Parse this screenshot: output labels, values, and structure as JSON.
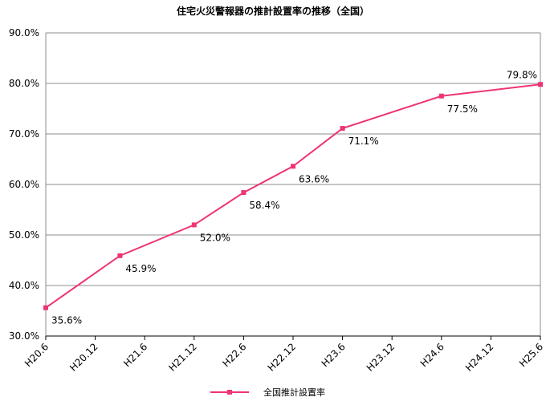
{
  "chart_data": {
    "type": "line",
    "title": "住宅火災警報器の推計設置率の推移（全国）",
    "xlabel": "",
    "ylabel": "",
    "ylim": [
      30,
      90
    ],
    "y_ticks": [
      "30.0%",
      "40.0%",
      "50.0%",
      "60.0%",
      "70.0%",
      "80.0%",
      "90.0%"
    ],
    "x_tick_labels": [
      "H20.6",
      "H20.12",
      "H21.6",
      "H21.12",
      "H22.6",
      "H22.12",
      "H23.6",
      "H23.12",
      "H24.6",
      "H24.12",
      "H25.6"
    ],
    "grid": true,
    "legend_position": "bottom-center",
    "series": [
      {
        "name": "全国推計設置率",
        "color": "#ee3377",
        "points": [
          {
            "x": "H20.6",
            "y": 35.6,
            "label": "35.6%"
          },
          {
            "x": "H21.3",
            "y": 45.9,
            "label": "45.9%"
          },
          {
            "x": "H21.12",
            "y": 52.0,
            "label": "52.0%"
          },
          {
            "x": "H22.6",
            "y": 58.4,
            "label": "58.4%"
          },
          {
            "x": "H22.12",
            "y": 63.6,
            "label": "63.6%"
          },
          {
            "x": "H23.6",
            "y": 71.1,
            "label": "71.1%"
          },
          {
            "x": "H24.6",
            "y": 77.5,
            "label": "77.5%"
          },
          {
            "x": "H25.6",
            "y": 79.8,
            "label": "79.8%"
          }
        ]
      }
    ]
  }
}
